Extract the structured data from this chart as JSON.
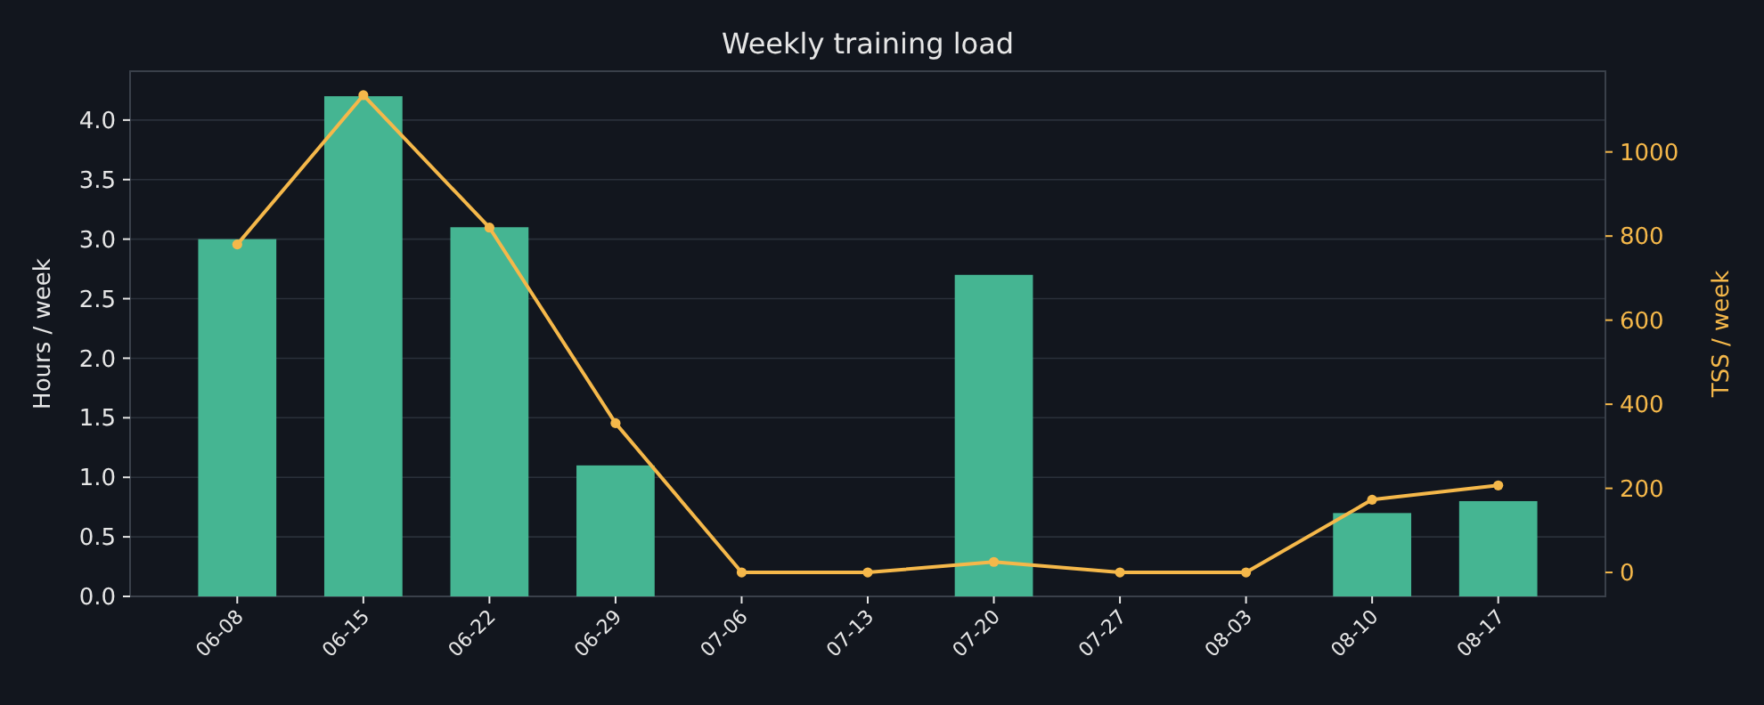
{
  "chart_data": {
    "type": "bar",
    "title": "Weekly training load",
    "ylabel": "Hours / week",
    "y2label": "TSS / week",
    "categories": [
      "06-08",
      "06-15",
      "06-22",
      "06-29",
      "07-06",
      "07-13",
      "07-20",
      "07-27",
      "08-03",
      "08-10",
      "08-17"
    ],
    "series": [
      {
        "color": "#45b592",
        "values": [
          3.0,
          4.2,
          3.1,
          1.1,
          0,
          0,
          2.7,
          0,
          0,
          0.7,
          0.8
        ]
      },
      {
        "type": "line",
        "axis": "y2",
        "color": "#f5b84a",
        "marker": "circle",
        "line_style": "solid",
        "values": [
          780,
          1135,
          820,
          355,
          0,
          0,
          25,
          0,
          0,
          173,
          207
        ]
      }
    ],
    "ylim": [
      0,
      4.41
    ],
    "yticks": [
      {
        "value": 0,
        "label": "0.0"
      },
      {
        "value": 0.5,
        "label": "0.5"
      },
      {
        "value": 1,
        "label": "1.0"
      },
      {
        "value": 1.5,
        "label": "1.5"
      },
      {
        "value": 2,
        "label": "2.0"
      },
      {
        "value": 2.5,
        "label": "2.5"
      },
      {
        "value": 3,
        "label": "3.0"
      },
      {
        "value": 3.5,
        "label": "3.5"
      },
      {
        "value": 4,
        "label": "4.0"
      }
    ],
    "y2lim": [
      -57,
      1192
    ],
    "y2ticks": [
      0,
      200,
      400,
      600,
      800,
      1000
    ],
    "grid": "y"
  }
}
